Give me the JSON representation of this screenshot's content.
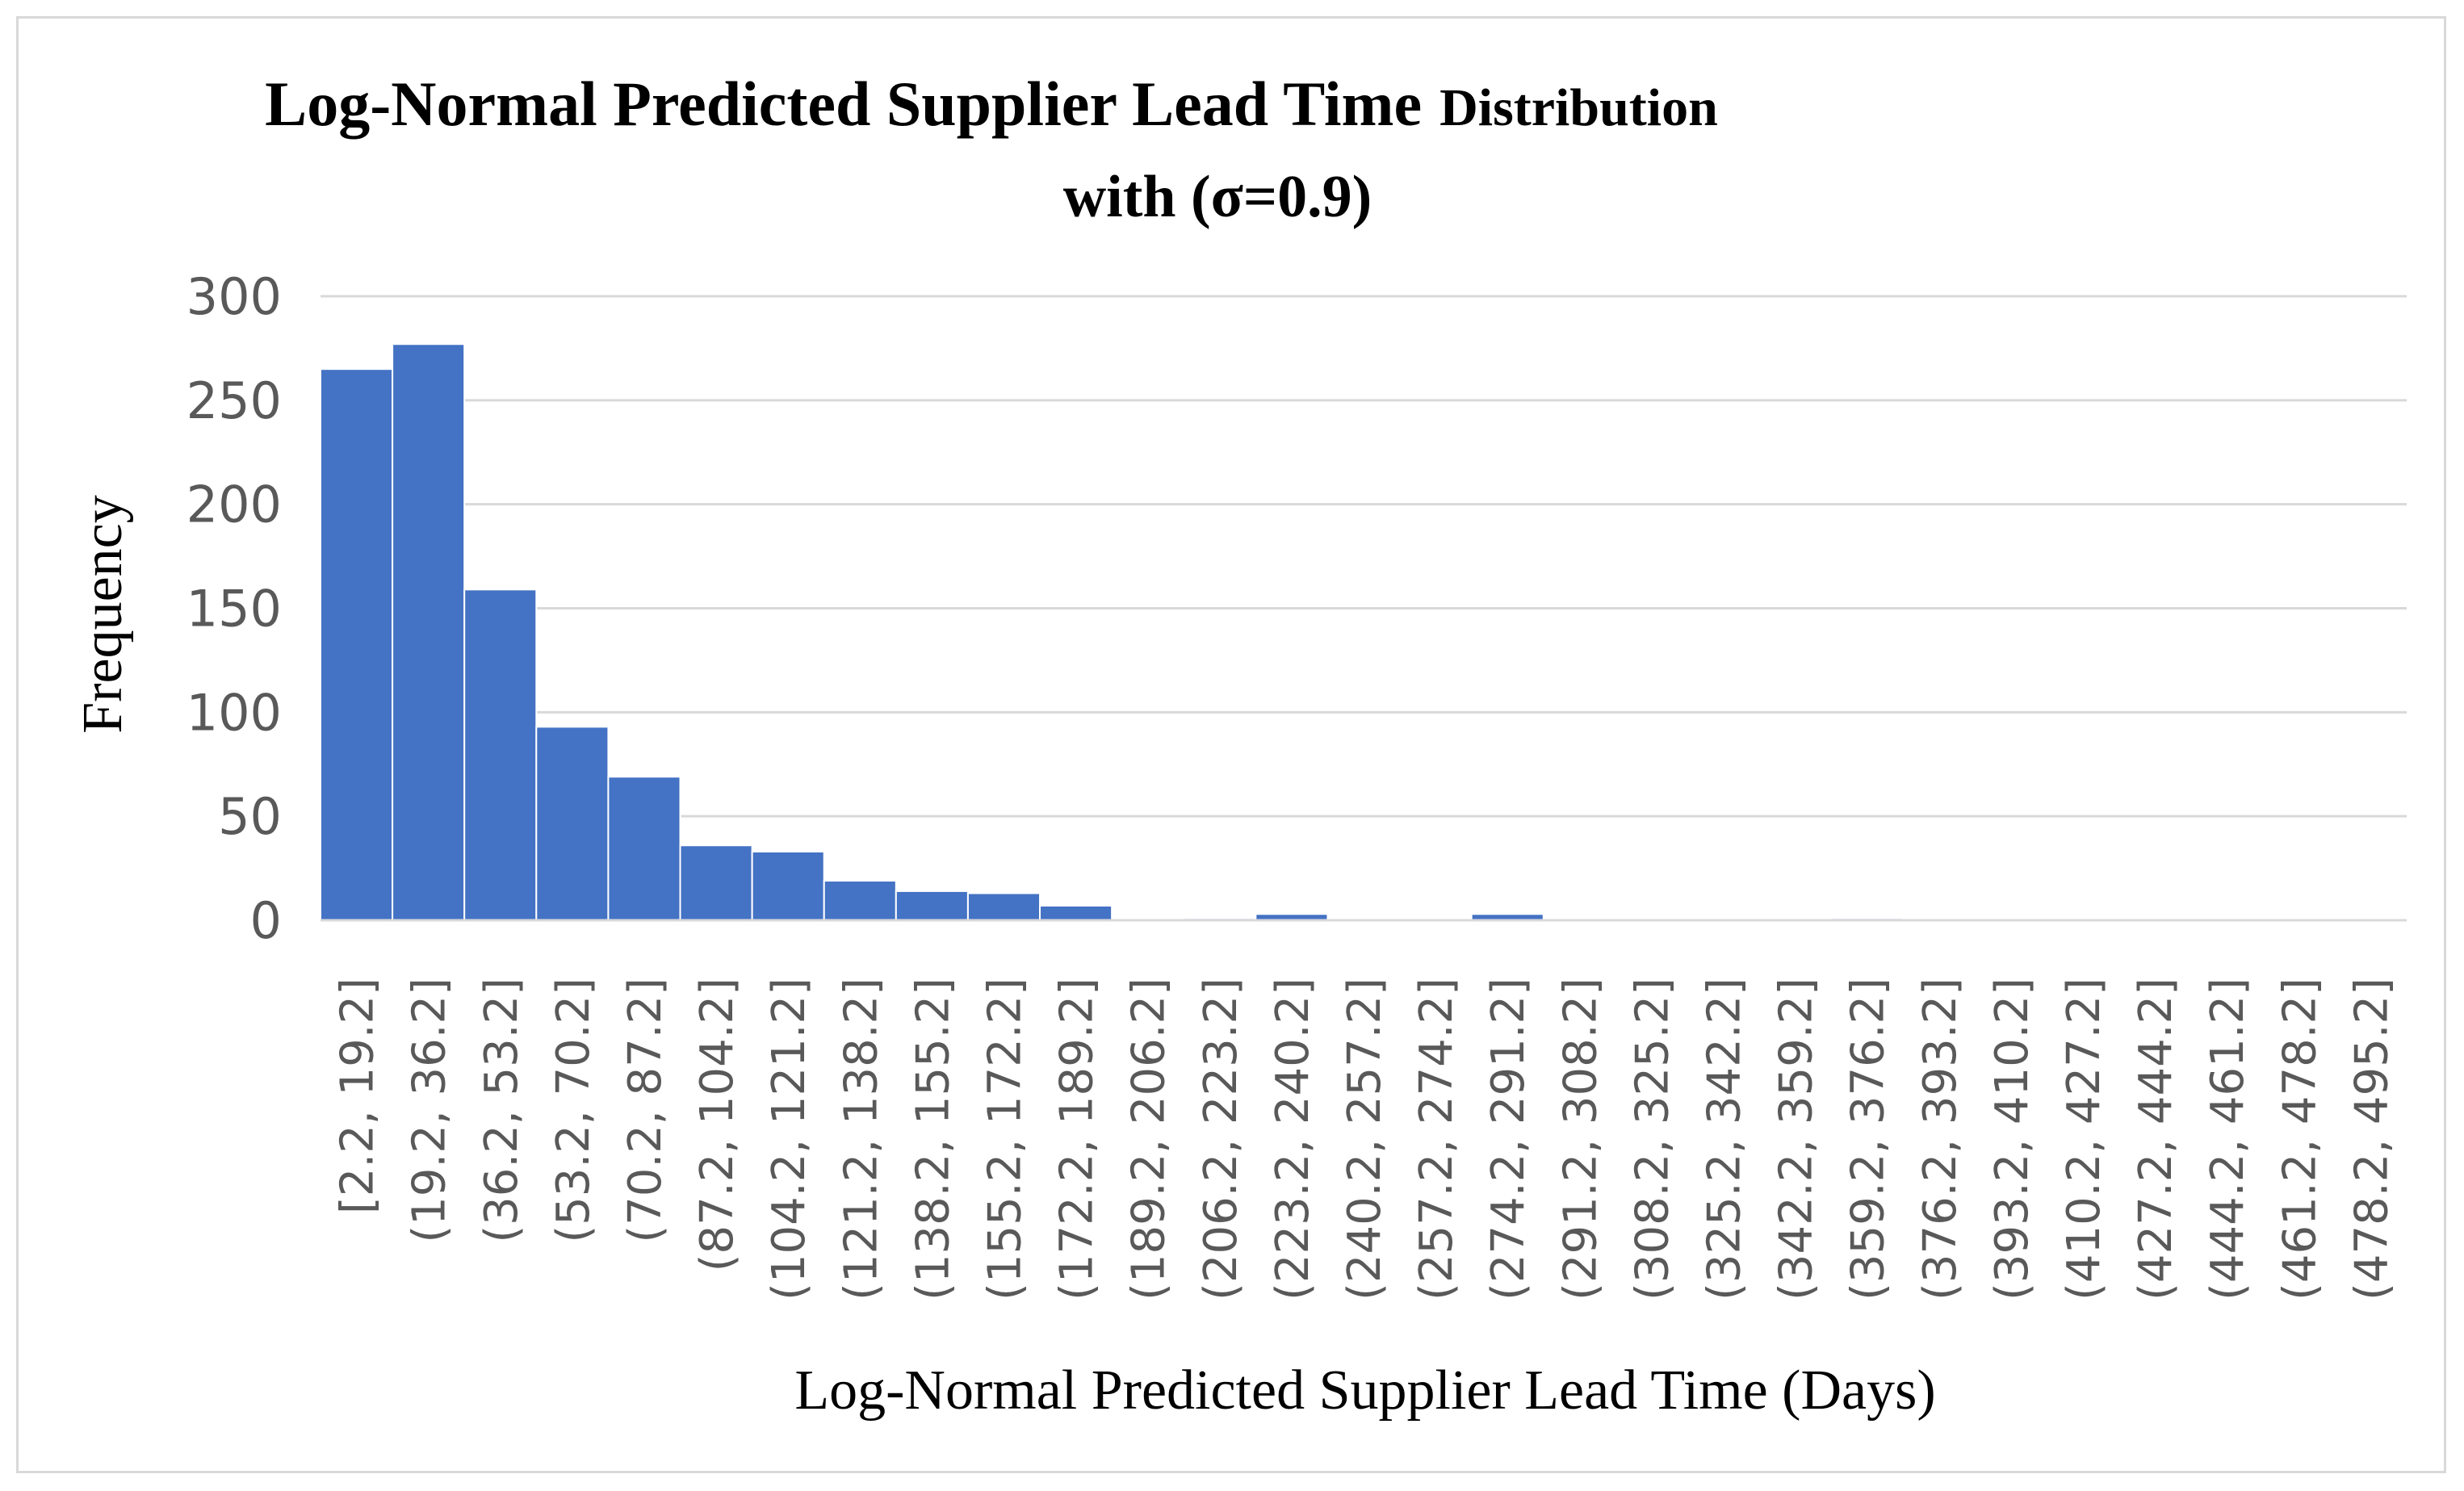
{
  "chart_data": {
    "type": "bar",
    "title_main": "Log-Normal Predicted Supplier Lead Time",
    "title_tail": "Distribution",
    "title_line2": "with (σ=0.9)",
    "xlabel": "Log-Normal Predicted Supplier Lead Time (Days)",
    "ylabel": "Frequency",
    "ylim": [
      0,
      300
    ],
    "yticks": [
      0,
      50,
      100,
      150,
      200,
      250,
      300
    ],
    "grid": true,
    "legend": "none",
    "bar_color": "#4472c4",
    "categories": [
      "[2.2, 19.2]",
      "(19.2, 36.2]",
      "(36.2, 53.2]",
      "(53.2, 70.2]",
      "(70.2, 87.2]",
      "(87.2, 104.2]",
      "(104.2, 121.2]",
      "(121.2, 138.2]",
      "(138.2, 155.2]",
      "(155.2, 172.2]",
      "(172.2, 189.2]",
      "(189.2, 206.2]",
      "(206.2, 223.2]",
      "(223.2, 240.2]",
      "(240.2, 257.2]",
      "(257.2, 274.2]",
      "(274.2, 291.2]",
      "(291.2, 308.2]",
      "(308.2, 325.2]",
      "(325.2, 342.2]",
      "(342.2, 359.2]",
      "(359.2, 376.2]",
      "(376.2, 393.2]",
      "(393.2, 410.2]",
      "(410.2, 427.2]",
      "(427.2, 444.2]",
      "(444.2, 461.2]",
      "(461.2, 478.2]",
      "(478.2, 495.2]"
    ],
    "values": [
      265,
      277,
      159,
      93,
      69,
      36,
      33,
      19,
      14,
      13,
      7,
      0,
      1,
      3,
      0,
      0,
      3,
      0,
      0,
      0,
      0,
      1,
      0,
      0,
      0,
      0,
      0,
      0,
      0
    ]
  }
}
